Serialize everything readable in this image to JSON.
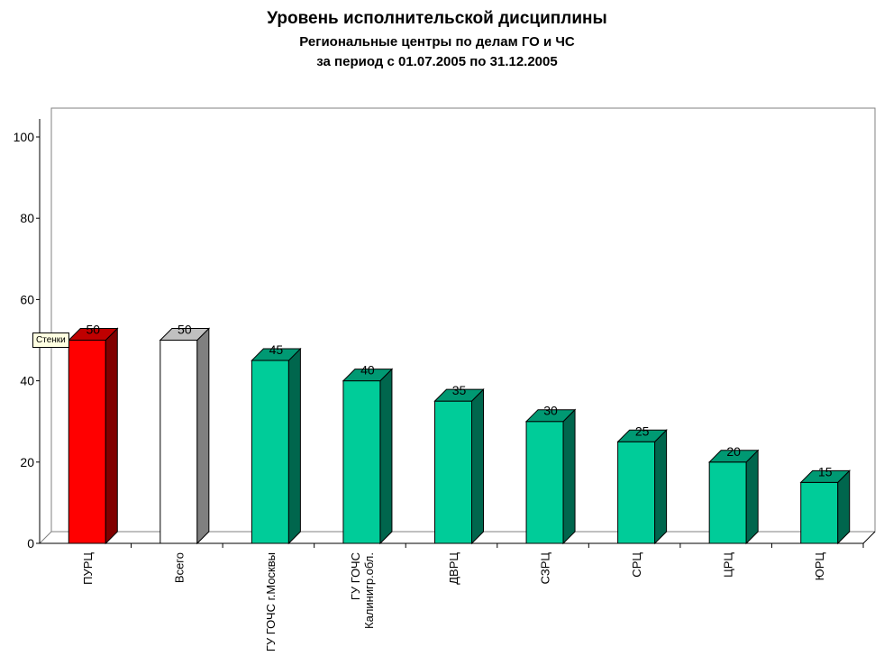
{
  "chart_data": {
    "type": "bar",
    "title": "Уровень исполнительской дисциплины",
    "subtitle": "Региональные центры по делам ГО и ЧС",
    "period": "за период с 01.07.2005 по 31.12.2005",
    "categories": [
      "ПУРЦ",
      "Всего",
      "ГУ ГОЧС г.Москвы",
      "ГУ ГОЧС\nКалинигр.обл.",
      "ДВРЦ",
      "СЗРЦ",
      "СРЦ",
      "ЦРЦ",
      "ЮРЦ"
    ],
    "values": [
      50,
      50,
      45,
      40,
      35,
      30,
      25,
      20,
      15
    ],
    "data_labels": [
      "50",
      "50",
      "45",
      "40",
      "35",
      "30",
      "25",
      "20",
      "15"
    ],
    "bar_colors": [
      "#ff0000",
      "#ffffff",
      "#00cc99",
      "#00cc99",
      "#00cc99",
      "#00cc99",
      "#00cc99",
      "#00cc99",
      "#00cc99"
    ],
    "ylim": [
      0,
      100
    ],
    "yticks": [
      "0",
      "20",
      "40",
      "60",
      "80",
      "100"
    ],
    "grid": false,
    "legend": "none",
    "tooltip": "Стенки"
  }
}
